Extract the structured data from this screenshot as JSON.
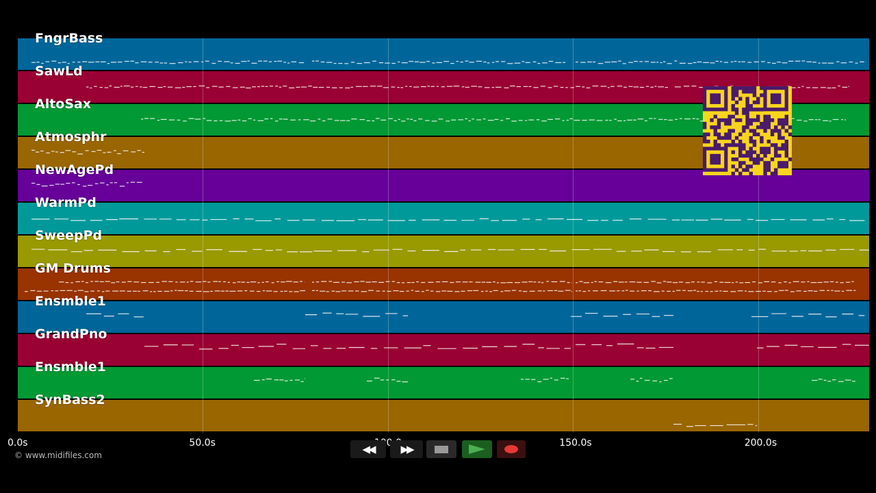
{
  "tracks": [
    {
      "name": "FngrBass",
      "color": "#006699"
    },
    {
      "name": "SawLd",
      "color": "#990033"
    },
    {
      "name": "AltoSax",
      "color": "#009933"
    },
    {
      "name": "Atmosphr",
      "color": "#996600"
    },
    {
      "name": "NewAgePd",
      "color": "#660099"
    },
    {
      "name": "WarmPd",
      "color": "#009999"
    },
    {
      "name": "SweepPd",
      "color": "#999900"
    },
    {
      "name": "GM Drums",
      "color": "#993300"
    },
    {
      "name": "Ensmble1",
      "color": "#006699"
    },
    {
      "name": "GrandPno",
      "color": "#990033"
    },
    {
      "name": "Ensmble1",
      "color": "#009933"
    },
    {
      "name": "SynBass2",
      "color": "#996600"
    }
  ],
  "timeline": {
    "max_seconds": 230,
    "ticks": [
      "0.0s",
      "50.0s",
      "100.0s",
      "150.0s",
      "200.0s"
    ],
    "tick_values": [
      0,
      50,
      100,
      150,
      200
    ]
  },
  "transport": {
    "rewind_icon": "rewind-icon",
    "forward_icon": "fast-forward-icon",
    "stop_icon": "stop-icon",
    "play_icon": "play-icon",
    "record_icon": "record-icon",
    "rewind_glyph": "◀◀",
    "forward_glyph": "▶▶"
  },
  "copyright": "© www.midifiles.com",
  "qr_code": "qr-code-icon"
}
